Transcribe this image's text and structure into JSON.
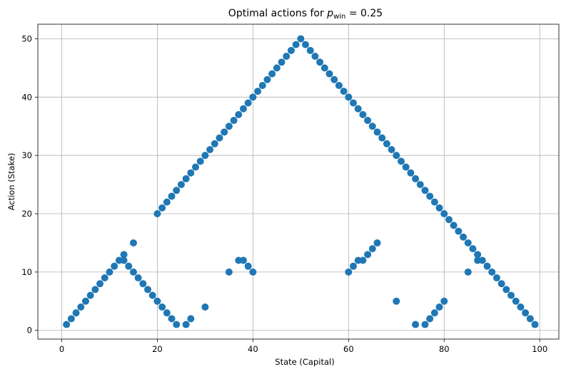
{
  "chart_data": {
    "type": "scatter",
    "title_prefix": "Optimal actions for ",
    "title_var": "p",
    "title_sub": "win",
    "title_suffix": " = 0.25",
    "xlabel": "State (Capital)",
    "ylabel": "Action (Stake)",
    "xlim": [
      -5,
      104
    ],
    "ylim": [
      -1.5,
      52.5
    ],
    "xticks": [
      0,
      20,
      40,
      60,
      80,
      100
    ],
    "yticks": [
      0,
      10,
      20,
      30,
      40,
      50
    ],
    "grid": true,
    "marker_color": "#1f77b4",
    "series": [
      {
        "x": [
          1,
          2,
          3,
          4,
          5,
          6,
          7,
          8,
          9,
          10,
          11,
          12,
          13,
          13,
          14,
          15,
          15,
          16,
          17,
          18,
          19,
          20,
          20,
          21,
          21,
          22,
          22,
          23,
          23,
          24,
          24,
          25,
          26,
          26,
          27,
          27,
          28,
          29,
          30,
          30,
          31,
          32,
          33,
          34,
          35,
          35,
          36,
          37,
          37,
          38,
          38,
          39,
          39,
          40,
          40,
          41,
          42,
          43,
          44,
          45,
          46,
          47,
          48,
          49,
          50,
          51,
          52,
          53,
          54,
          55,
          56,
          57,
          58,
          59,
          60,
          60,
          61,
          61,
          62,
          62,
          63,
          63,
          64,
          64,
          65,
          65,
          66,
          66,
          67,
          68,
          69,
          70,
          70,
          71,
          72,
          73,
          74,
          74,
          75,
          76,
          76,
          77,
          77,
          78,
          78,
          79,
          79,
          80,
          80,
          81,
          82,
          83,
          84,
          85,
          85,
          86,
          87,
          87,
          88,
          89,
          90,
          91,
          92,
          93,
          94,
          95,
          96,
          97,
          98,
          99
        ],
        "y": [
          1,
          2,
          3,
          4,
          5,
          6,
          7,
          8,
          9,
          10,
          11,
          12,
          12,
          13,
          11,
          10,
          15,
          9,
          8,
          7,
          6,
          5,
          20,
          4,
          21,
          3,
          22,
          2,
          23,
          1,
          24,
          25,
          1,
          26,
          2,
          27,
          28,
          29,
          4,
          30,
          31,
          32,
          33,
          34,
          35,
          10,
          36,
          12,
          37,
          12,
          38,
          39,
          11,
          40,
          10,
          41,
          42,
          43,
          44,
          45,
          46,
          47,
          48,
          49,
          50,
          49,
          48,
          47,
          46,
          45,
          44,
          43,
          42,
          41,
          10,
          40,
          11,
          39,
          12,
          38,
          12,
          37,
          13,
          36,
          14,
          35,
          15,
          34,
          33,
          32,
          31,
          30,
          5,
          29,
          28,
          27,
          26,
          1,
          25,
          24,
          1,
          23,
          2,
          22,
          3,
          21,
          4,
          20,
          5,
          19,
          18,
          17,
          16,
          15,
          10,
          14,
          13,
          12,
          12,
          11,
          10,
          9,
          8,
          7,
          6,
          5,
          4,
          3,
          2,
          1
        ]
      }
    ]
  }
}
